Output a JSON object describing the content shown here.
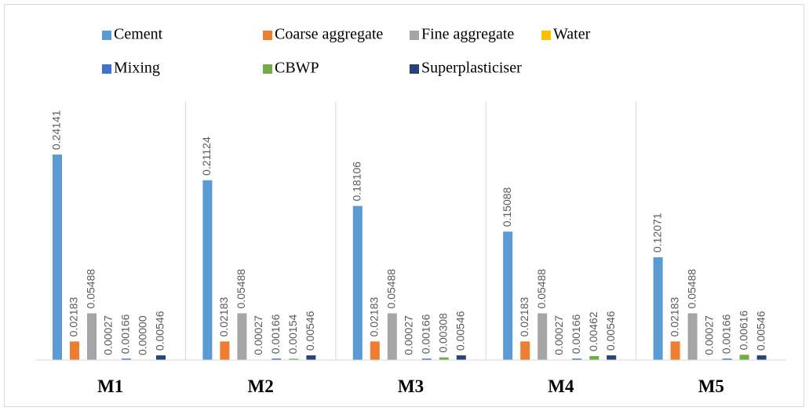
{
  "chart_data": {
    "type": "bar",
    "categories": [
      "M1",
      "M2",
      "M3",
      "M4",
      "M5"
    ],
    "series": [
      {
        "name": "Cement",
        "color": "#5b9bd5",
        "values": [
          0.24141,
          0.21124,
          0.18106,
          0.15088,
          0.12071
        ]
      },
      {
        "name": "Coarse aggregate",
        "color": "#ed7d31",
        "values": [
          0.02183,
          0.02183,
          0.02183,
          0.02183,
          0.02183
        ]
      },
      {
        "name": "Fine aggregate",
        "color": "#a5a5a5",
        "values": [
          0.05488,
          0.05488,
          0.05488,
          0.05488,
          0.05488
        ]
      },
      {
        "name": "Water",
        "color": "#ffc000",
        "values": [
          0.00027,
          0.00027,
          0.00027,
          0.00027,
          0.00027
        ]
      },
      {
        "name": "Mixing",
        "color": "#4472c4",
        "values": [
          0.00166,
          0.00166,
          0.00166,
          0.00166,
          0.00166
        ]
      },
      {
        "name": "CBWP",
        "color": "#70ad47",
        "values": [
          0,
          0.00154,
          0.00308,
          0.00462,
          0.00616
        ],
        "value_labels": [
          "0.00000",
          "0.00154",
          "0.00308",
          "0.00462",
          "0.00616"
        ]
      },
      {
        "name": "Superplasticiser",
        "color": "#264478",
        "values": [
          0.00546,
          0.00546,
          0.00546,
          0.00546,
          0.00546
        ]
      }
    ]
  }
}
